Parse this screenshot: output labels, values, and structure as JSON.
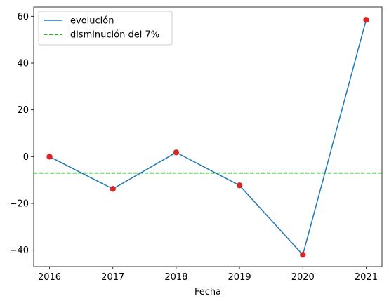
{
  "chart_data": {
    "type": "line",
    "title": "",
    "xlabel": "Fecha",
    "ylabel": "",
    "x": [
      "2016",
      "2017",
      "2018",
      "2019",
      "2020",
      "2021"
    ],
    "series": [
      {
        "name": "evolución",
        "values": [
          0,
          -13.8,
          1.8,
          -12.3,
          -42,
          58.5
        ],
        "color": "#1f77b4",
        "marker_color": "#d62728"
      }
    ],
    "hline": {
      "name": "disminución del 7%",
      "value": -7,
      "color": "#008000",
      "style": "dashed"
    },
    "xlim": [
      2015.75,
      2021.25
    ],
    "ylim": [
      -47,
      64
    ],
    "yticks": [
      -40,
      -20,
      0,
      20,
      40,
      60
    ],
    "ytick_labels": [
      "−40",
      "−20",
      "0",
      "20",
      "40",
      "60"
    ],
    "grid": false,
    "legend": "top-left"
  }
}
